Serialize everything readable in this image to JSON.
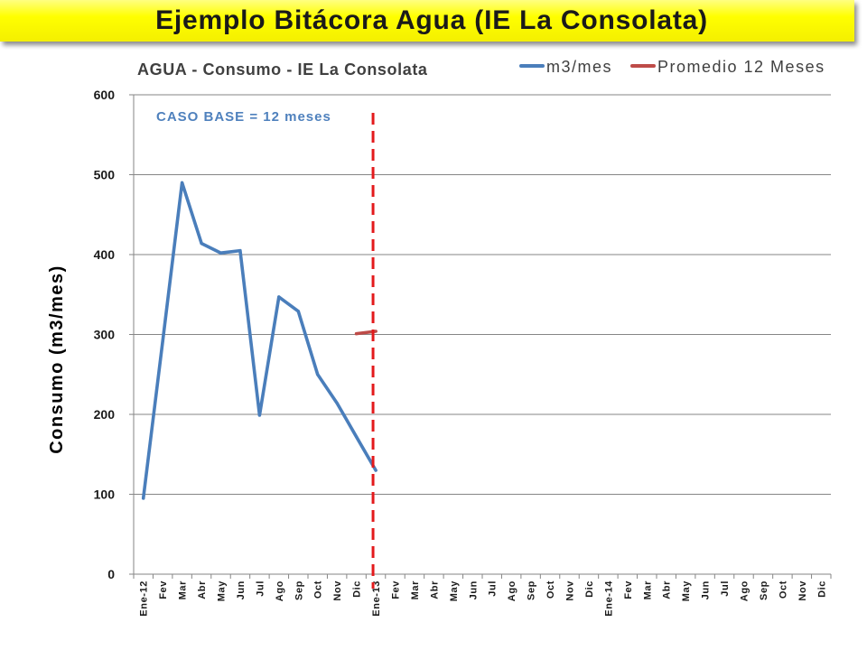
{
  "slide": {
    "title": "Ejemplo Bitácora Agua (IE La Consolata)"
  },
  "colors": {
    "banner": "#ffff00",
    "grid": "#868686",
    "text": "#404040"
  },
  "chart_data": {
    "type": "line",
    "title": "AGUA - Consumo - IE La Consolata",
    "xlabel": "",
    "ylabel": "Consumo (m3/mes)",
    "ylim": [
      0,
      600
    ],
    "yticks": [
      0,
      100,
      200,
      300,
      400,
      500,
      600
    ],
    "grid": true,
    "legend": "top-right",
    "categories": [
      "Ene-12",
      "Fev",
      "Mar",
      "Abr",
      "May",
      "Jun",
      "Jul",
      "Ago",
      "Sep",
      "Oct",
      "Nov",
      "Dic",
      "Ene-13",
      "Fev",
      "Mar",
      "Abr",
      "May",
      "Jun",
      "Jul",
      "Ago",
      "Sep",
      "Oct",
      "Nov",
      "Dic",
      "Ene-14",
      "Fev",
      "Mar",
      "Abr",
      "May",
      "Jun",
      "Jul",
      "Ago",
      "Sep",
      "Oct",
      "Nov",
      "Dic"
    ],
    "series": [
      {
        "name": "m3/mes",
        "color": "#4a7ebb",
        "values": [
          95,
          292,
          490,
          414,
          402,
          405,
          199,
          347,
          329,
          250,
          214,
          172,
          130,
          null,
          null,
          null,
          null,
          null,
          null,
          null,
          null,
          null,
          null,
          null,
          null,
          null,
          null,
          null,
          null,
          null,
          null,
          null,
          null,
          null,
          null,
          null
        ]
      },
      {
        "name": "Promedio 12 Meses",
        "color": "#be4b48",
        "values": [
          null,
          null,
          null,
          null,
          null,
          null,
          null,
          null,
          null,
          null,
          null,
          301,
          304,
          null,
          null,
          null,
          null,
          null,
          null,
          null,
          null,
          null,
          null,
          null,
          null,
          null,
          null,
          null,
          null,
          null,
          null,
          null,
          null,
          null,
          null,
          null
        ]
      }
    ],
    "annotations": [
      {
        "text": "CASO BASE = 12 meses",
        "color": "#4f81bd"
      }
    ],
    "reference_line": {
      "category": "Ene-13",
      "color": "#e31a1c"
    }
  }
}
